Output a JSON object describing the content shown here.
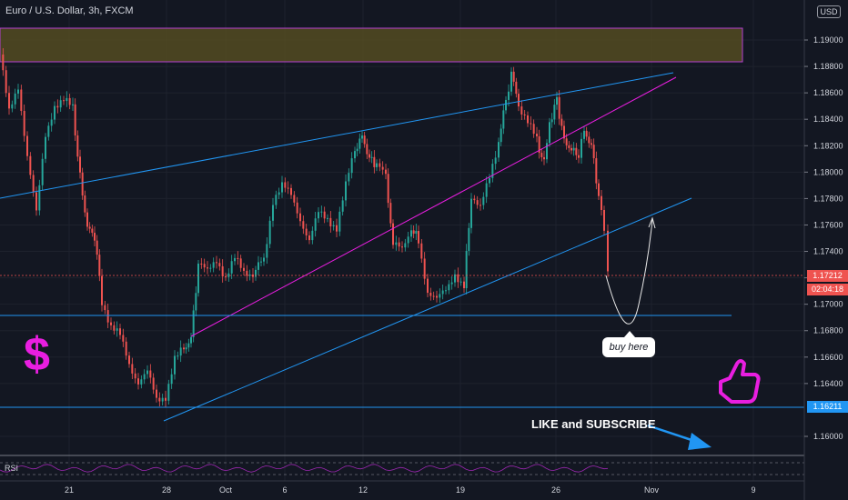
{
  "header": {
    "symbol_title": "Euro / U.S. Dollar, 3h, FXCM",
    "currency_badge": "USD"
  },
  "price_axis": {
    "ticks": [
      "1.19000",
      "1.18800",
      "1.18600",
      "1.18400",
      "1.18200",
      "1.18000",
      "1.17800",
      "1.17600",
      "1.17400",
      "1.17200",
      "1.17000",
      "1.16800",
      "1.16600",
      "1.16400",
      "1.16000"
    ],
    "current_price": "1.17212",
    "countdown": "02:04:18",
    "support_price": "1.16211"
  },
  "time_axis": {
    "labels": [
      "21",
      "28",
      "Oct",
      "6",
      "12",
      "19",
      "26",
      "Nov",
      "9"
    ]
  },
  "annotations": {
    "buy_callout": "buy here",
    "like_subscribe": "LIKE and SUBSCRIBE",
    "dollar_symbol": "$"
  },
  "indicator": {
    "name": "RSI"
  },
  "colors": {
    "background": "#131722",
    "up_candle": "#26a69a",
    "down_candle": "#ef5350",
    "trend_line": "#2196f3",
    "magenta_line": "#e91ee0",
    "resistance_zone": "#5c5322",
    "current_price_tag": "#ef5350",
    "support_tag": "#2196f3"
  },
  "icons": [
    "thumbs-up-icon",
    "dollar-sign-icon",
    "arrow-right-icon"
  ]
}
